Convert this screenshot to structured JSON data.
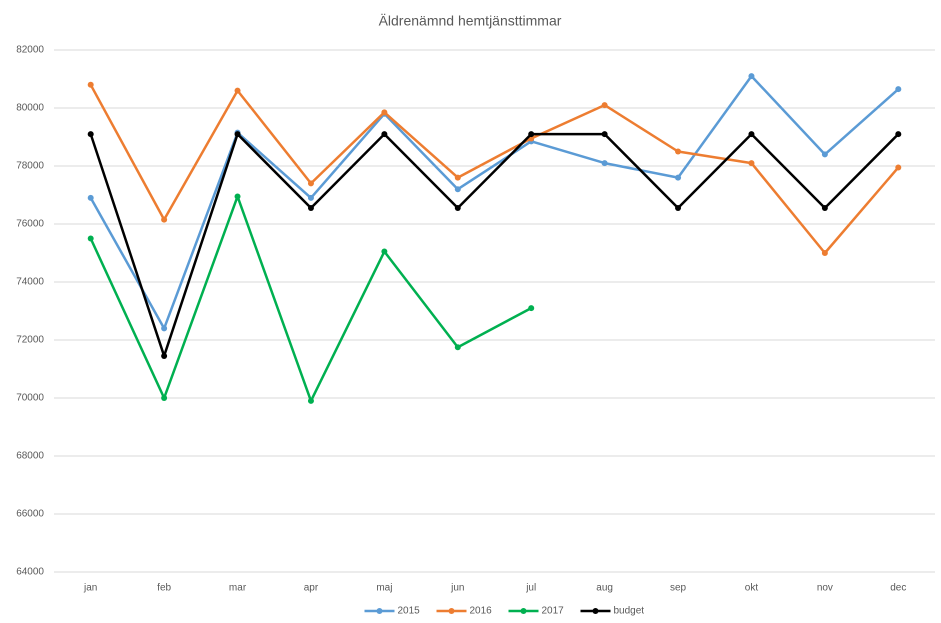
{
  "chart_data": {
    "type": "line",
    "title": "Äldrenämnd hemtjänsttimmar",
    "categories": [
      "jan",
      "feb",
      "mar",
      "apr",
      "maj",
      "jun",
      "jul",
      "aug",
      "sep",
      "okt",
      "nov",
      "dec"
    ],
    "series": [
      {
        "name": "2015",
        "color": "#5b9bd5",
        "values": [
          76900,
          72400,
          79150,
          76900,
          79800,
          77200,
          78850,
          78100,
          77600,
          81100,
          78400,
          80650
        ]
      },
      {
        "name": "2016",
        "color": "#ed7d31",
        "values": [
          80800,
          76150,
          80600,
          77400,
          79850,
          77600,
          78950,
          80100,
          78500,
          78100,
          75000,
          77950
        ]
      },
      {
        "name": "2017",
        "color": "#00b050",
        "values": [
          75500,
          70000,
          76950,
          69900,
          75050,
          71750,
          73100,
          null,
          null,
          null,
          null,
          null
        ]
      },
      {
        "name": "budget",
        "color": "#000000",
        "values": [
          79100,
          71450,
          79100,
          76550,
          79100,
          76550,
          79100,
          79100,
          76550,
          79100,
          76550,
          79100
        ]
      }
    ],
    "ylim": [
      64000,
      82000
    ],
    "yticks": [
      64000,
      66000,
      68000,
      70000,
      72000,
      74000,
      76000,
      78000,
      80000,
      82000
    ],
    "grid": true,
    "legend": "bottom"
  }
}
